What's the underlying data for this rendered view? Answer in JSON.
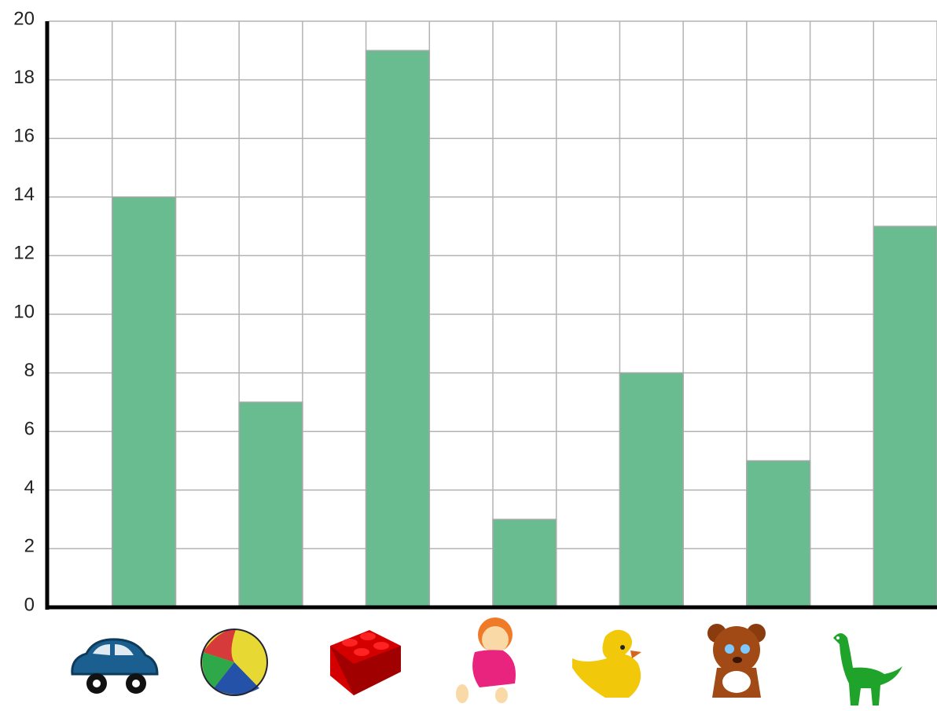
{
  "chart_data": {
    "type": "bar",
    "categories": [
      null,
      null,
      null,
      null,
      null,
      null,
      null
    ],
    "values": [
      14,
      7,
      19,
      3,
      8,
      5,
      13
    ],
    "color": "#68bc90",
    "ylim": [
      0,
      20
    ],
    "yticks": [
      0,
      2,
      4,
      6,
      8,
      10,
      12,
      14,
      16,
      18,
      20
    ],
    "grid": true
  }
}
